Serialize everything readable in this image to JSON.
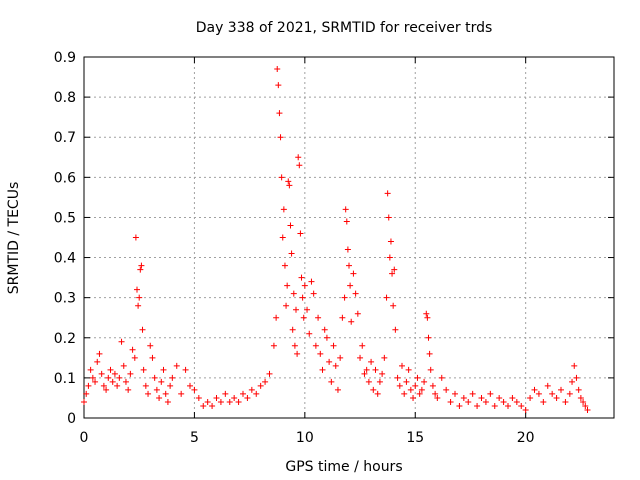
{
  "chart_data": {
    "type": "scatter",
    "title": "Day 338 of 2021, SRMTID for receiver trds",
    "xlabel": "GPS time / hours",
    "ylabel": "SRMTID / TECUs",
    "xlim": [
      0,
      24
    ],
    "ylim": [
      0,
      0.9
    ],
    "xticks": [
      0,
      5,
      10,
      15,
      20
    ],
    "yticks": [
      0,
      0.1,
      0.2,
      0.3,
      0.4,
      0.5,
      0.6,
      0.7,
      0.8,
      0.9
    ],
    "grid": true,
    "marker": "+",
    "color": "#ff0000",
    "series": [
      {
        "name": "SRMTID",
        "points": [
          [
            0.0,
            0.04
          ],
          [
            0.1,
            0.06
          ],
          [
            0.2,
            0.08
          ],
          [
            0.3,
            0.12
          ],
          [
            0.4,
            0.1
          ],
          [
            0.5,
            0.09
          ],
          [
            0.6,
            0.14
          ],
          [
            0.7,
            0.16
          ],
          [
            0.8,
            0.11
          ],
          [
            0.9,
            0.08
          ],
          [
            1.0,
            0.07
          ],
          [
            1.1,
            0.1
          ],
          [
            1.2,
            0.12
          ],
          [
            1.3,
            0.09
          ],
          [
            1.4,
            0.11
          ],
          [
            1.5,
            0.08
          ],
          [
            1.6,
            0.1
          ],
          [
            1.7,
            0.19
          ],
          [
            1.8,
            0.13
          ],
          [
            1.9,
            0.09
          ],
          [
            2.0,
            0.07
          ],
          [
            2.1,
            0.11
          ],
          [
            2.2,
            0.17
          ],
          [
            2.3,
            0.15
          ],
          [
            2.35,
            0.45
          ],
          [
            2.4,
            0.32
          ],
          [
            2.45,
            0.28
          ],
          [
            2.5,
            0.3
          ],
          [
            2.55,
            0.37
          ],
          [
            2.6,
            0.38
          ],
          [
            2.65,
            0.22
          ],
          [
            2.7,
            0.12
          ],
          [
            2.8,
            0.08
          ],
          [
            2.9,
            0.06
          ],
          [
            3.0,
            0.18
          ],
          [
            3.1,
            0.15
          ],
          [
            3.2,
            0.1
          ],
          [
            3.3,
            0.07
          ],
          [
            3.4,
            0.05
          ],
          [
            3.5,
            0.09
          ],
          [
            3.6,
            0.12
          ],
          [
            3.7,
            0.06
          ],
          [
            3.8,
            0.04
          ],
          [
            3.9,
            0.08
          ],
          [
            4.0,
            0.1
          ],
          [
            4.2,
            0.13
          ],
          [
            4.4,
            0.06
          ],
          [
            4.6,
            0.12
          ],
          [
            4.8,
            0.08
          ],
          [
            5.0,
            0.07
          ],
          [
            5.2,
            0.05
          ],
          [
            5.4,
            0.03
          ],
          [
            5.6,
            0.04
          ],
          [
            5.8,
            0.03
          ],
          [
            6.0,
            0.05
          ],
          [
            6.2,
            0.04
          ],
          [
            6.4,
            0.06
          ],
          [
            6.6,
            0.04
          ],
          [
            6.8,
            0.05
          ],
          [
            7.0,
            0.04
          ],
          [
            7.2,
            0.06
          ],
          [
            7.4,
            0.05
          ],
          [
            7.6,
            0.07
          ],
          [
            7.8,
            0.06
          ],
          [
            8.0,
            0.08
          ],
          [
            8.2,
            0.09
          ],
          [
            8.4,
            0.11
          ],
          [
            8.6,
            0.18
          ],
          [
            8.7,
            0.25
          ],
          [
            8.75,
            0.87
          ],
          [
            8.8,
            0.83
          ],
          [
            8.85,
            0.76
          ],
          [
            8.9,
            0.7
          ],
          [
            8.95,
            0.6
          ],
          [
            9.0,
            0.45
          ],
          [
            9.05,
            0.52
          ],
          [
            9.1,
            0.38
          ],
          [
            9.15,
            0.28
          ],
          [
            9.2,
            0.33
          ],
          [
            9.25,
            0.59
          ],
          [
            9.3,
            0.58
          ],
          [
            9.35,
            0.48
          ],
          [
            9.4,
            0.41
          ],
          [
            9.45,
            0.22
          ],
          [
            9.5,
            0.31
          ],
          [
            9.55,
            0.18
          ],
          [
            9.6,
            0.27
          ],
          [
            9.65,
            0.16
          ],
          [
            9.7,
            0.65
          ],
          [
            9.75,
            0.63
          ],
          [
            9.8,
            0.46
          ],
          [
            9.85,
            0.35
          ],
          [
            9.9,
            0.3
          ],
          [
            9.95,
            0.25
          ],
          [
            10.0,
            0.33
          ],
          [
            10.1,
            0.27
          ],
          [
            10.2,
            0.21
          ],
          [
            10.3,
            0.34
          ],
          [
            10.4,
            0.31
          ],
          [
            10.5,
            0.18
          ],
          [
            10.6,
            0.25
          ],
          [
            10.7,
            0.16
          ],
          [
            10.8,
            0.12
          ],
          [
            10.9,
            0.22
          ],
          [
            11.0,
            0.2
          ],
          [
            11.1,
            0.14
          ],
          [
            11.2,
            0.09
          ],
          [
            11.3,
            0.18
          ],
          [
            11.4,
            0.13
          ],
          [
            11.5,
            0.07
          ],
          [
            11.6,
            0.15
          ],
          [
            11.7,
            0.25
          ],
          [
            11.8,
            0.3
          ],
          [
            11.85,
            0.52
          ],
          [
            11.9,
            0.49
          ],
          [
            11.95,
            0.42
          ],
          [
            12.0,
            0.38
          ],
          [
            12.05,
            0.33
          ],
          [
            12.1,
            0.24
          ],
          [
            12.2,
            0.36
          ],
          [
            12.3,
            0.31
          ],
          [
            12.4,
            0.26
          ],
          [
            12.5,
            0.15
          ],
          [
            12.6,
            0.18
          ],
          [
            12.7,
            0.11
          ],
          [
            12.8,
            0.12
          ],
          [
            12.9,
            0.09
          ],
          [
            13.0,
            0.14
          ],
          [
            13.1,
            0.07
          ],
          [
            13.2,
            0.12
          ],
          [
            13.3,
            0.06
          ],
          [
            13.4,
            0.09
          ],
          [
            13.5,
            0.11
          ],
          [
            13.6,
            0.15
          ],
          [
            13.7,
            0.3
          ],
          [
            13.75,
            0.56
          ],
          [
            13.8,
            0.5
          ],
          [
            13.85,
            0.4
          ],
          [
            13.9,
            0.44
          ],
          [
            13.95,
            0.36
          ],
          [
            14.0,
            0.28
          ],
          [
            14.05,
            0.37
          ],
          [
            14.1,
            0.22
          ],
          [
            14.2,
            0.1
          ],
          [
            14.3,
            0.08
          ],
          [
            14.4,
            0.13
          ],
          [
            14.5,
            0.06
          ],
          [
            14.6,
            0.09
          ],
          [
            14.7,
            0.12
          ],
          [
            14.8,
            0.07
          ],
          [
            14.9,
            0.05
          ],
          [
            15.0,
            0.08
          ],
          [
            15.1,
            0.1
          ],
          [
            15.2,
            0.06
          ],
          [
            15.3,
            0.07
          ],
          [
            15.4,
            0.09
          ],
          [
            15.5,
            0.26
          ],
          [
            15.55,
            0.25
          ],
          [
            15.6,
            0.2
          ],
          [
            15.65,
            0.16
          ],
          [
            15.7,
            0.12
          ],
          [
            15.8,
            0.08
          ],
          [
            15.9,
            0.06
          ],
          [
            16.0,
            0.05
          ],
          [
            16.2,
            0.1
          ],
          [
            16.4,
            0.07
          ],
          [
            16.6,
            0.04
          ],
          [
            16.8,
            0.06
          ],
          [
            17.0,
            0.03
          ],
          [
            17.2,
            0.05
          ],
          [
            17.4,
            0.04
          ],
          [
            17.6,
            0.06
          ],
          [
            17.8,
            0.03
          ],
          [
            18.0,
            0.05
          ],
          [
            18.2,
            0.04
          ],
          [
            18.4,
            0.06
          ],
          [
            18.6,
            0.03
          ],
          [
            18.8,
            0.05
          ],
          [
            19.0,
            0.04
          ],
          [
            19.2,
            0.03
          ],
          [
            19.4,
            0.05
          ],
          [
            19.6,
            0.04
          ],
          [
            19.8,
            0.03
          ],
          [
            20.0,
            0.02
          ],
          [
            20.2,
            0.05
          ],
          [
            20.4,
            0.07
          ],
          [
            20.6,
            0.06
          ],
          [
            20.8,
            0.04
          ],
          [
            21.0,
            0.08
          ],
          [
            21.2,
            0.06
          ],
          [
            21.4,
            0.05
          ],
          [
            21.6,
            0.07
          ],
          [
            21.8,
            0.04
          ],
          [
            22.0,
            0.06
          ],
          [
            22.1,
            0.09
          ],
          [
            22.2,
            0.13
          ],
          [
            22.3,
            0.1
          ],
          [
            22.4,
            0.07
          ],
          [
            22.5,
            0.05
          ],
          [
            22.6,
            0.04
          ],
          [
            22.7,
            0.03
          ],
          [
            22.8,
            0.02
          ]
        ]
      }
    ]
  }
}
